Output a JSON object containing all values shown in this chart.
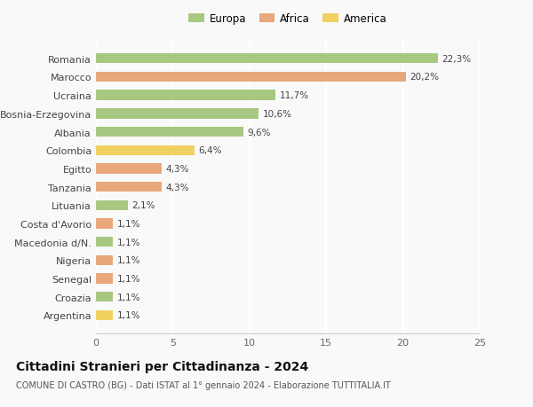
{
  "categories": [
    "Romania",
    "Marocco",
    "Ucraina",
    "Bosnia-Erzegovina",
    "Albania",
    "Colombia",
    "Egitto",
    "Tanzania",
    "Lituania",
    "Costa d'Avorio",
    "Macedonia d/N.",
    "Nigeria",
    "Senegal",
    "Croazia",
    "Argentina"
  ],
  "values": [
    22.3,
    20.2,
    11.7,
    10.6,
    9.6,
    6.4,
    4.3,
    4.3,
    2.1,
    1.1,
    1.1,
    1.1,
    1.1,
    1.1,
    1.1
  ],
  "labels": [
    "22,3%",
    "20,2%",
    "11,7%",
    "10,6%",
    "9,6%",
    "6,4%",
    "4,3%",
    "4,3%",
    "2,1%",
    "1,1%",
    "1,1%",
    "1,1%",
    "1,1%",
    "1,1%",
    "1,1%"
  ],
  "colors": [
    "#a8c882",
    "#e8a87c",
    "#a8c882",
    "#a8c882",
    "#a8c882",
    "#f0d060",
    "#e8a87c",
    "#e8a87c",
    "#a8c882",
    "#e8a87c",
    "#a8c882",
    "#e8a87c",
    "#e8a87c",
    "#a8c882",
    "#f0d060"
  ],
  "legend_labels": [
    "Europa",
    "Africa",
    "America"
  ],
  "legend_colors": [
    "#a8c882",
    "#e8a87c",
    "#f0d060"
  ],
  "xlim": [
    0,
    25
  ],
  "xticks": [
    0,
    5,
    10,
    15,
    20,
    25
  ],
  "title": "Cittadini Stranieri per Cittadinanza - 2024",
  "subtitle": "COMUNE DI CASTRO (BG) - Dati ISTAT al 1° gennaio 2024 - Elaborazione TUTTITALIA.IT",
  "background_color": "#f9f9f9",
  "bar_height": 0.55,
  "label_fontsize": 7.5,
  "ylabel_fontsize": 8,
  "xlabel_fontsize": 8,
  "title_fontsize": 10,
  "subtitle_fontsize": 7
}
